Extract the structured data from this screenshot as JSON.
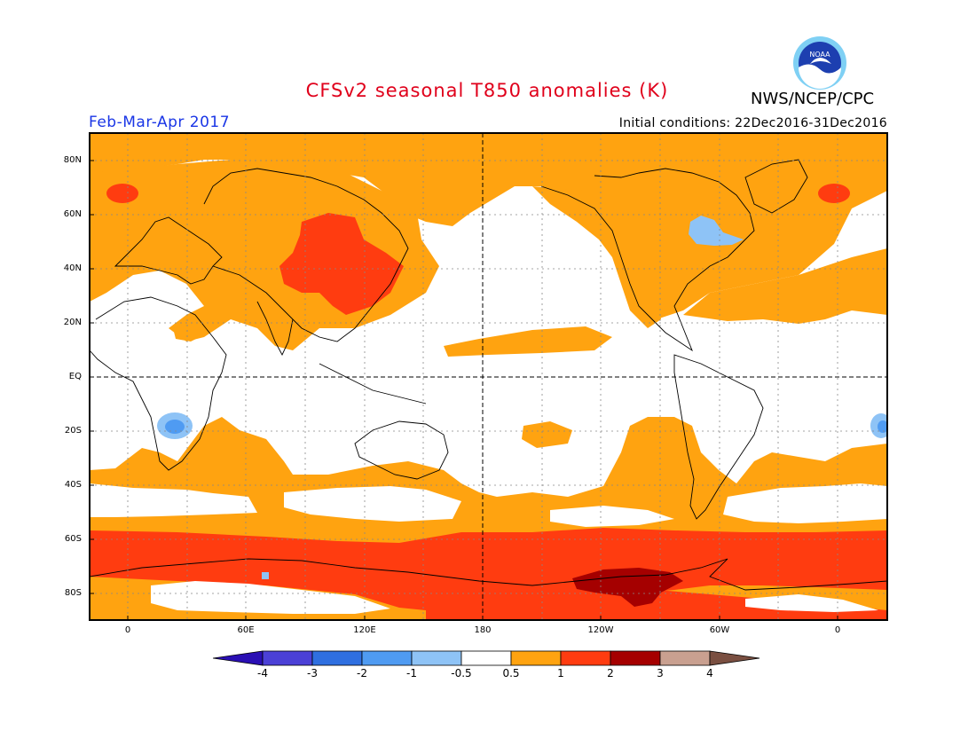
{
  "header": {
    "title": "CFSv2 seasonal T850 anomalies (K)",
    "org": "NWS/NCEP/CPC",
    "period": "Feb-Mar-Apr 2017",
    "initial_conditions": "Initial conditions: 22Dec2016-31Dec2016",
    "logo_text": "NOAA"
  },
  "map": {
    "projection": "equirectangular",
    "lat_ticks": [
      "80N",
      "60N",
      "40N",
      "20N",
      "EQ",
      "20S",
      "40S",
      "60S",
      "80S"
    ],
    "lon_ticks": [
      "0",
      "60E",
      "120E",
      "180",
      "120W",
      "60W",
      "0"
    ],
    "grid": "dotted",
    "reference_lines": [
      "equator",
      "180"
    ]
  },
  "legend": {
    "unit": "K",
    "labels": [
      "-4",
      "-3",
      "-2",
      "-1",
      "-0.5",
      "0.5",
      "1",
      "2",
      "3",
      "4"
    ],
    "colors": [
      "#2a0fb4",
      "#4b40d6",
      "#2f6fe0",
      "#4f9bf2",
      "#8ec3f6",
      "#ffffff",
      "#ffa310",
      "#ff3c10",
      "#a50000",
      "#c9a090",
      "#7a4f41"
    ]
  },
  "colors": {
    "title": "#e0001b",
    "period": "#1a36e6",
    "anomaly_0_5_to_1": "#ffa310",
    "anomaly_1_to_2": "#ff3c10",
    "anomaly_2_to_3": "#a50000",
    "anomaly_neg_0_5_to_neg_1": "#8ec3f6",
    "anomaly_neg_1_to_neg_2": "#4f9bf2"
  }
}
